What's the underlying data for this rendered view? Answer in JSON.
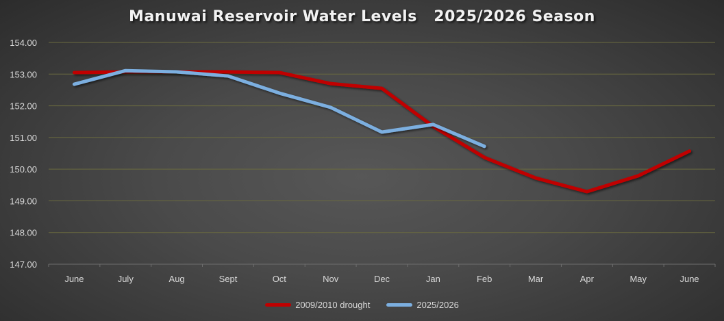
{
  "chart_data": {
    "type": "line",
    "title": "Manuwai Reservoir Water Levels   2025/2026 Season",
    "xlabel": "",
    "ylabel": "",
    "categories": [
      "June",
      "July",
      "Aug",
      "Sept",
      "Oct",
      "Nov",
      "Dec",
      "Jan",
      "Feb",
      "Mar",
      "Apr",
      "May",
      "June"
    ],
    "ylim": [
      147,
      154
    ],
    "yticks": [
      "147.00",
      "148.00",
      "149.00",
      "150.00",
      "151.00",
      "152.00",
      "153.00",
      "154.00"
    ],
    "grid": true,
    "legend_position": "bottom",
    "series": [
      {
        "name": "2009/2010 drought",
        "color": "#c00000",
        "values": [
          153.05,
          153.07,
          153.07,
          153.07,
          153.05,
          152.7,
          152.55,
          151.35,
          150.37,
          149.72,
          149.29,
          149.79,
          150.57
        ]
      },
      {
        "name": "2025/2026",
        "color": "#7cafe0",
        "values": [
          152.68,
          153.11,
          153.07,
          152.94,
          152.4,
          151.95,
          151.17,
          151.41,
          150.72,
          null,
          null,
          null,
          null
        ]
      }
    ]
  }
}
